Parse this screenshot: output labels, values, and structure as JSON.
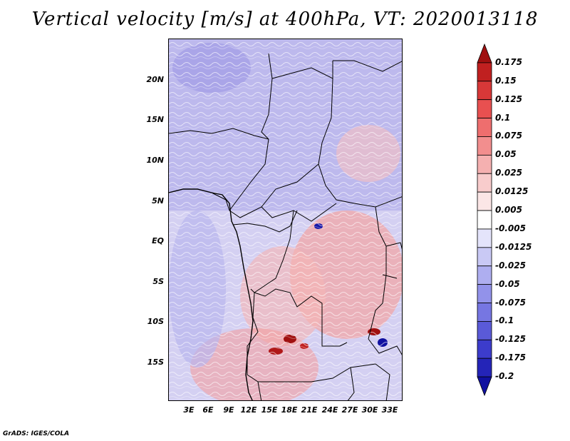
{
  "title": "Vertical velocity [m/s] at 400hPa, VT: 2020013118",
  "footer": "GrADS: IGES/COLA",
  "lat_labels": [
    "20N",
    "15N",
    "10N",
    "5N",
    "EQ",
    "5S",
    "10S",
    "15S"
  ],
  "lon_labels": [
    "3E",
    "6E",
    "9E",
    "12E",
    "15E",
    "18E",
    "21E",
    "24E",
    "27E",
    "30E",
    "33E"
  ],
  "colorbar": {
    "labels": [
      "0.175",
      "0.15",
      "0.125",
      "0.1",
      "0.075",
      "0.05",
      "0.025",
      "0.0125",
      "0.005",
      "-0.005",
      "-0.0125",
      "-0.025",
      "-0.05",
      "-0.075",
      "-0.1",
      "-0.125",
      "-0.175",
      "-0.2"
    ],
    "colors": [
      "#a01010",
      "#c02020",
      "#d83838",
      "#e85050",
      "#ee6e6e",
      "#f28e8e",
      "#f5b0b0",
      "#f8cccc",
      "#fbe6e6",
      "#ffffff",
      "#e4e4fb",
      "#c9c9f5",
      "#aeaef0",
      "#9292ea",
      "#7676e2",
      "#5a5ad8",
      "#3c3ccc",
      "#2424b8",
      "#1010a0"
    ]
  },
  "colors": {
    "positive": "#e85050",
    "negative": "#7676e2"
  }
}
